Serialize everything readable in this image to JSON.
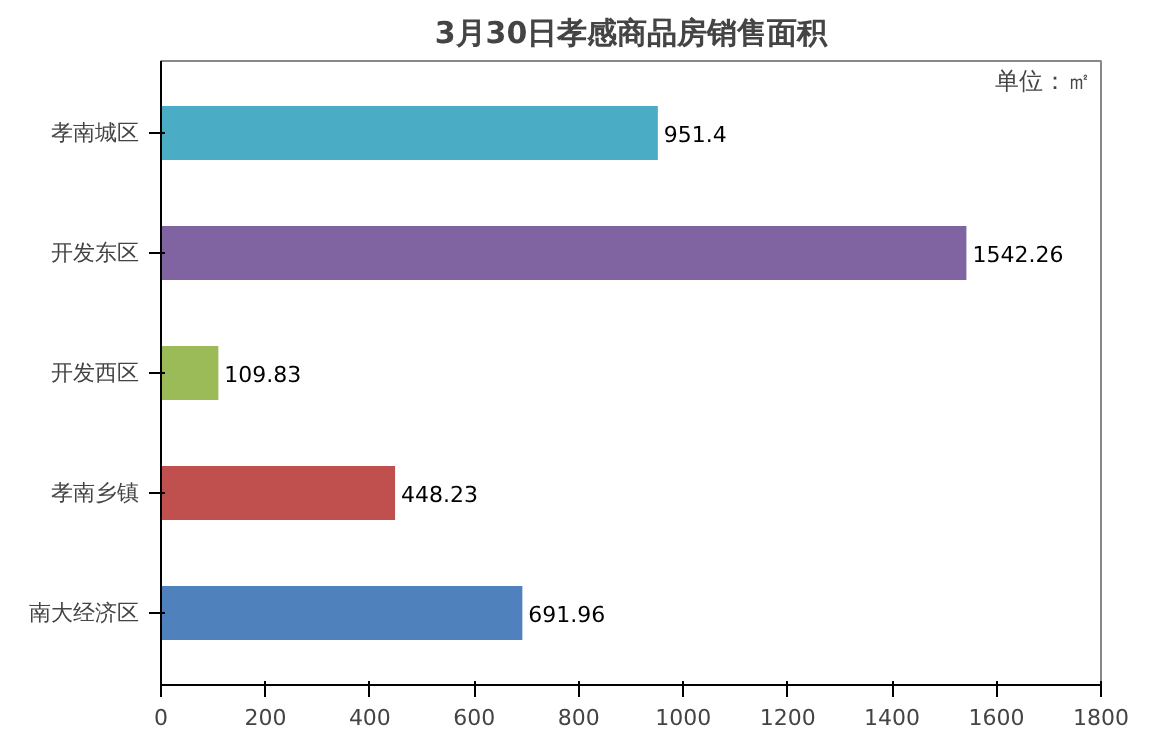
{
  "chart_data": {
    "type": "bar",
    "orientation": "horizontal",
    "title": "3月30日孝感商品房销售面积",
    "annotations": [
      "单位：㎡"
    ],
    "categories": [
      "孝南城区",
      "开发东区",
      "开发西区",
      "孝南乡镇",
      "南大经济区"
    ],
    "values": [
      951.4,
      1542.26,
      109.83,
      448.23,
      691.96
    ],
    "colors": [
      "#4bacc6",
      "#8064a2",
      "#9bbb59",
      "#c0504d",
      "#4f81bd"
    ],
    "xlim": [
      0,
      1800
    ],
    "xticks": [
      0,
      200,
      400,
      600,
      800,
      1000,
      1200,
      1400,
      1600,
      1800
    ],
    "data_labels": true,
    "grid": false
  }
}
